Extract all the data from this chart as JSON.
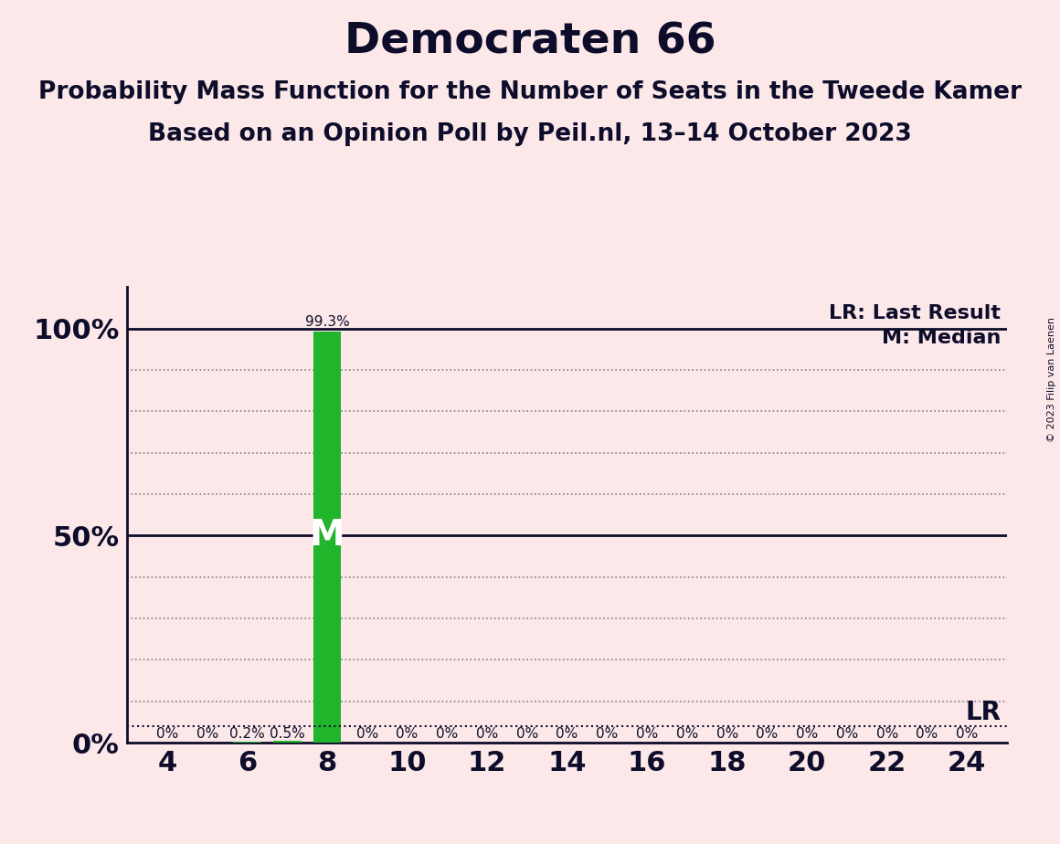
{
  "title": "Democraten 66",
  "subtitle1": "Probability Mass Function for the Number of Seats in the Tweede Kamer",
  "subtitle2": "Based on an Opinion Poll by Peil.nl, 13–14 October 2023",
  "copyright": "© 2023 Filip van Laenen",
  "background_color": "#fce8e8",
  "bar_color": "#21b52b",
  "text_color": "#0d0d2b",
  "seats": [
    4,
    5,
    6,
    7,
    8,
    9,
    10,
    11,
    12,
    13,
    14,
    15,
    16,
    17,
    18,
    19,
    20,
    21,
    22,
    23,
    24
  ],
  "probabilities": [
    0.0,
    0.0,
    0.2,
    0.5,
    99.3,
    0.0,
    0.0,
    0.0,
    0.0,
    0.0,
    0.0,
    0.0,
    0.0,
    0.0,
    0.0,
    0.0,
    0.0,
    0.0,
    0.0,
    0.0,
    0.0
  ],
  "bar_labels": [
    "0%",
    "0%",
    "0.2%",
    "0.5%",
    "99.3%",
    "0%",
    "0%",
    "0%",
    "0%",
    "0%",
    "0%",
    "0%",
    "0%",
    "0%",
    "0%",
    "0%",
    "0%",
    "0%",
    "0%",
    "0%",
    "0%"
  ],
  "median_seat": 8,
  "lr_value": 4.0,
  "xlim_min": 3.0,
  "xlim_max": 25.0,
  "ylim_min": 0,
  "ylim_max": 110,
  "legend_lr": "LR: Last Result",
  "legend_m": "M: Median",
  "title_fontsize": 34,
  "subtitle_fontsize": 19,
  "ytick_fontsize": 22,
  "xtick_fontsize": 22,
  "bar_label_fontsize": 11,
  "m_fontsize": 28,
  "legend_fontsize": 16,
  "lr_label_fontsize": 20,
  "copyright_fontsize": 8
}
